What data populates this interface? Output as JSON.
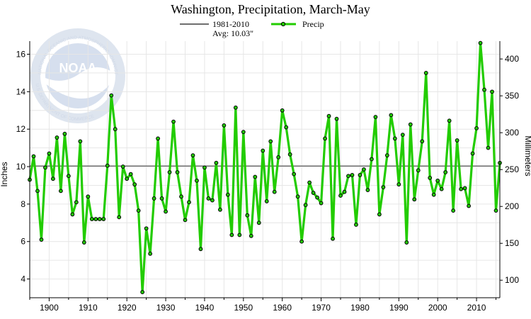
{
  "chart_data": {
    "type": "line",
    "title": "Washington, Precipitation, March-May",
    "xlabel": "",
    "ylabel": "Inches",
    "ylabel_right": "Millimeters",
    "xlim": [
      1895,
      2016
    ],
    "ylim": [
      3.0,
      16.7
    ],
    "ylim_right_mm": [
      76.2,
      424.2
    ],
    "x_ticks": [
      1900,
      1910,
      1920,
      1930,
      1940,
      1950,
      1960,
      1970,
      1980,
      1990,
      2000,
      2010
    ],
    "y_ticks": [
      4,
      6,
      8,
      10,
      12,
      14,
      16
    ],
    "y_ticks_right": [
      100,
      150,
      200,
      250,
      300,
      350,
      400
    ],
    "grid": true,
    "legend": [
      {
        "name": "1981-2010",
        "sub": "Avg: 10.03\"",
        "color": "#6e6e6e",
        "kind": "line"
      },
      {
        "name": "Precip",
        "color": "#22cc00",
        "kind": "line-marker"
      }
    ],
    "average": {
      "label": "1981-2010",
      "value_label": "Avg: 10.03\"",
      "value": 10.03,
      "color": "#6e6e6e"
    },
    "series": [
      {
        "name": "Precip",
        "color": "#22cc00",
        "marker_color": "#000000",
        "x": [
          1895,
          1896,
          1897,
          1898,
          1899,
          1900,
          1901,
          1902,
          1903,
          1904,
          1905,
          1906,
          1907,
          1908,
          1909,
          1910,
          1911,
          1912,
          1913,
          1914,
          1915,
          1916,
          1917,
          1918,
          1919,
          1920,
          1921,
          1922,
          1923,
          1924,
          1925,
          1926,
          1927,
          1928,
          1929,
          1930,
          1931,
          1932,
          1933,
          1934,
          1935,
          1936,
          1937,
          1938,
          1939,
          1940,
          1941,
          1942,
          1943,
          1944,
          1945,
          1946,
          1947,
          1948,
          1949,
          1950,
          1951,
          1952,
          1953,
          1954,
          1955,
          1956,
          1957,
          1958,
          1959,
          1960,
          1961,
          1962,
          1963,
          1964,
          1965,
          1966,
          1967,
          1968,
          1969,
          1970,
          1971,
          1972,
          1973,
          1974,
          1975,
          1976,
          1977,
          1978,
          1979,
          1980,
          1981,
          1982,
          1983,
          1984,
          1985,
          1986,
          1987,
          1988,
          1989,
          1990,
          1991,
          1992,
          1993,
          1994,
          1995,
          1996,
          1997,
          1998,
          1999,
          2000,
          2001,
          2002,
          2003,
          2004,
          2005,
          2006,
          2007,
          2008,
          2009,
          2010,
          2011,
          2012,
          2013,
          2014,
          2015,
          2016
        ],
        "values": [
          9.3,
          10.55,
          8.7,
          6.1,
          9.95,
          10.7,
          9.35,
          11.55,
          8.7,
          11.75,
          9.5,
          7.45,
          8.1,
          11.35,
          5.95,
          8.4,
          7.2,
          7.2,
          7.2,
          7.2,
          10.05,
          13.8,
          12.0,
          7.3,
          10.0,
          9.35,
          9.6,
          9.05,
          7.65,
          3.3,
          6.7,
          5.35,
          8.3,
          11.5,
          8.3,
          7.6,
          9.7,
          12.4,
          9.7,
          8.4,
          7.15,
          8.1,
          10.6,
          9.25,
          5.6,
          9.95,
          8.3,
          8.2,
          10.2,
          7.7,
          12.2,
          8.5,
          6.35,
          13.15,
          6.35,
          11.85,
          7.4,
          6.3,
          9.45,
          7.0,
          10.85,
          8.15,
          11.35,
          8.65,
          10.5,
          13.0,
          12.1,
          10.65,
          9.6,
          8.4,
          6.0,
          7.95,
          9.15,
          8.6,
          8.35,
          8.05,
          11.5,
          12.7,
          6.15,
          12.55,
          8.45,
          8.65,
          9.5,
          9.55,
          6.9,
          9.55,
          9.85,
          8.75,
          10.4,
          12.65,
          7.45,
          8.9,
          10.6,
          12.75,
          11.5,
          9.05,
          11.7,
          5.95,
          12.25,
          8.25,
          9.8,
          11.35,
          15.0,
          9.4,
          8.5,
          9.25,
          8.8,
          9.7,
          12.45,
          7.65,
          11.4,
          8.8,
          8.85,
          7.9,
          10.7,
          12.05,
          16.6,
          14.1,
          11.0,
          14.0,
          7.65,
          10.2
        ]
      }
    ],
    "watermark": {
      "text": "NOAA",
      "arc_text": "NATIONAL OCEANIC AND ATMOSPHERIC ADMINISTRATION",
      "arc_text_bottom": "U.S. DEPARTMENT OF COMMERCE"
    }
  }
}
